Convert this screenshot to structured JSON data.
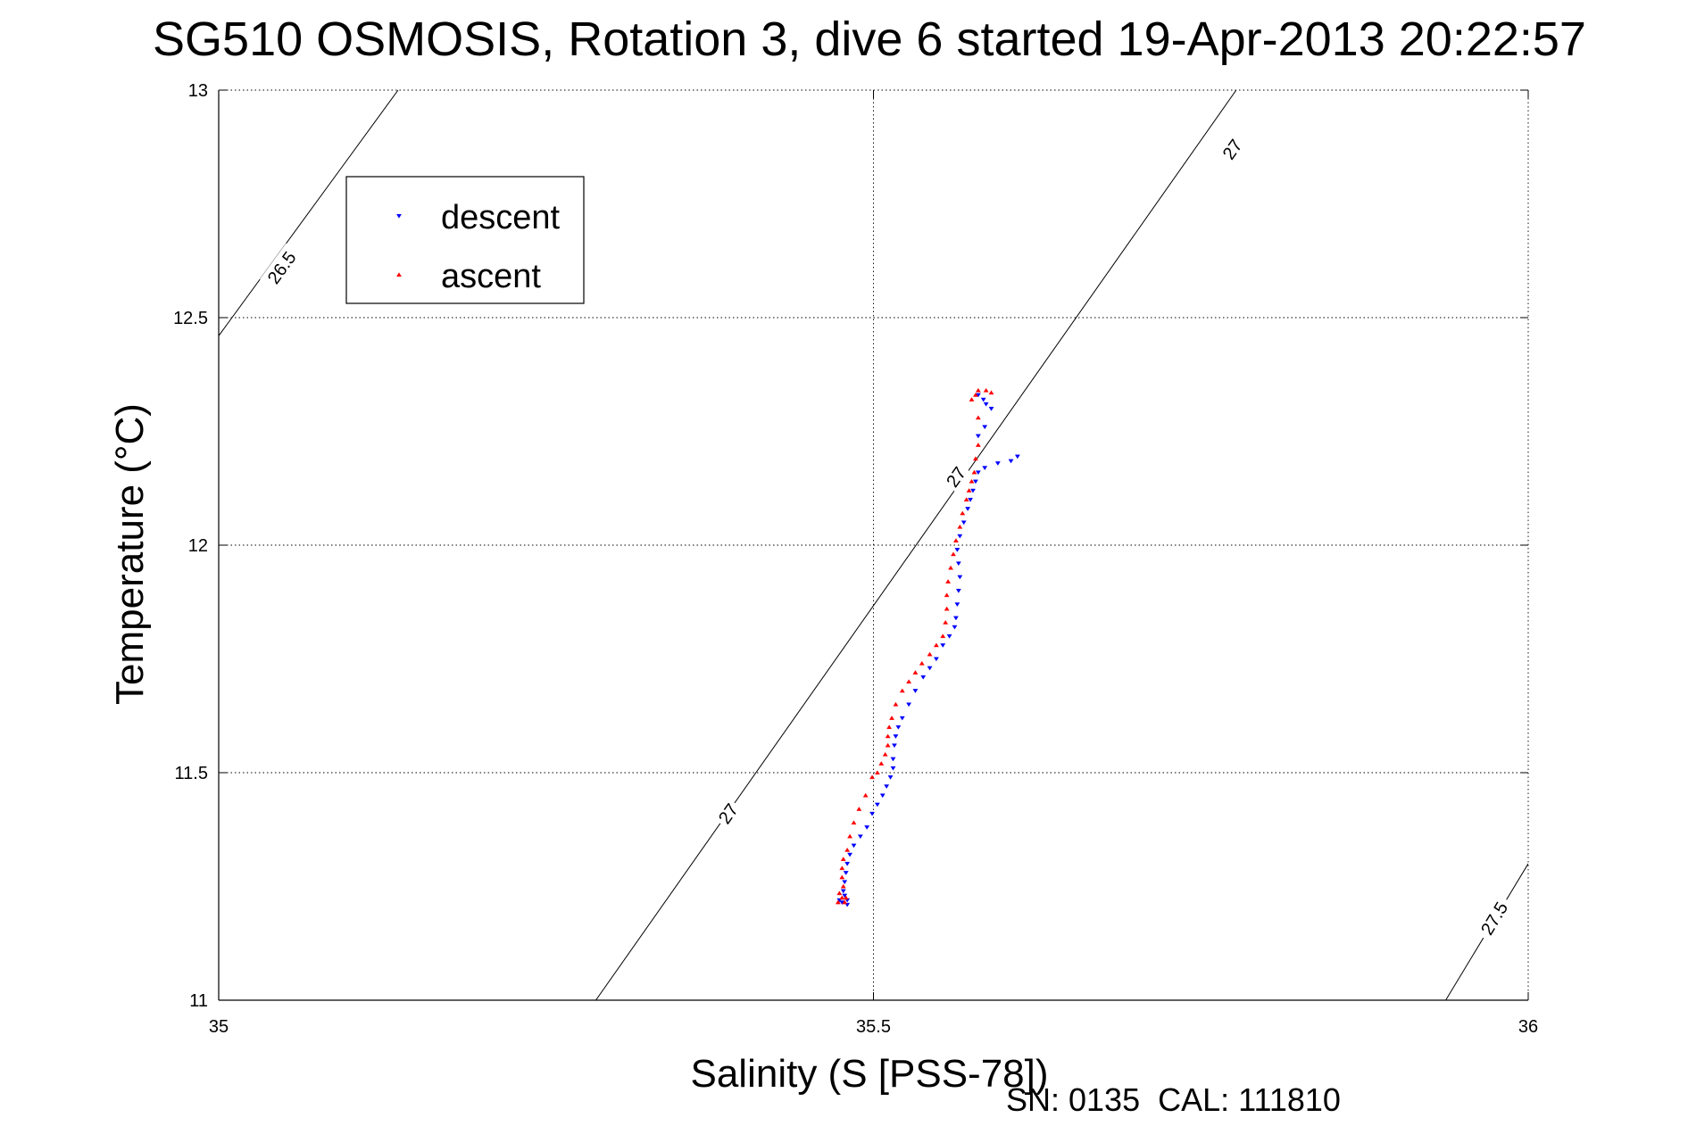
{
  "chart_data": {
    "type": "scatter",
    "title": "SG510 OSMOSIS, Rotation 3, dive 6 started 19-Apr-2013 20:22:57",
    "xlabel": "Salinity (S [PSS-78])",
    "ylabel": "Temperature (°C)",
    "xlim": [
      35,
      36
    ],
    "ylim": [
      11,
      13
    ],
    "xticks": [
      35,
      35.5,
      36
    ],
    "xtick_labels": [
      "35",
      "35.5",
      "36"
    ],
    "yticks": [
      11,
      11.5,
      12,
      12.5,
      13
    ],
    "ytick_labels": [
      "11",
      "11.5",
      "12",
      "12.5",
      "13"
    ],
    "grid": true,
    "legend_position": "top-left",
    "footer": "SN: 0135  CAL: 111810",
    "series": [
      {
        "name": "descent",
        "color": "#0000ff",
        "marker": "triangle-down",
        "points": [
          [
            35.584,
            12.32
          ],
          [
            35.586,
            12.31
          ],
          [
            35.58,
            12.33
          ],
          [
            35.59,
            12.3
          ],
          [
            35.585,
            12.26
          ],
          [
            35.58,
            12.24
          ],
          [
            35.61,
            12.195
          ],
          [
            35.605,
            12.185
          ],
          [
            35.595,
            12.18
          ],
          [
            35.585,
            12.17
          ],
          [
            35.58,
            12.16
          ],
          [
            35.578,
            12.14
          ],
          [
            35.576,
            12.12
          ],
          [
            35.574,
            12.1
          ],
          [
            35.572,
            12.08
          ],
          [
            35.569,
            12.05
          ],
          [
            35.566,
            12.02
          ],
          [
            35.564,
            11.99
          ],
          [
            35.565,
            11.96
          ],
          [
            35.566,
            11.93
          ],
          [
            35.565,
            11.9
          ],
          [
            35.564,
            11.87
          ],
          [
            35.563,
            11.84
          ],
          [
            35.562,
            11.82
          ],
          [
            35.558,
            11.8
          ],
          [
            35.553,
            11.78
          ],
          [
            35.548,
            11.75
          ],
          [
            35.543,
            11.73
          ],
          [
            35.538,
            11.71
          ],
          [
            35.532,
            11.68
          ],
          [
            35.527,
            11.65
          ],
          [
            35.522,
            11.62
          ],
          [
            35.519,
            11.6
          ],
          [
            35.517,
            11.58
          ],
          [
            35.516,
            11.56
          ],
          [
            35.515,
            11.53
          ],
          [
            35.515,
            11.51
          ],
          [
            35.513,
            11.49
          ],
          [
            35.51,
            11.47
          ],
          [
            35.507,
            11.45
          ],
          [
            35.503,
            11.43
          ],
          [
            35.499,
            11.41
          ],
          [
            35.495,
            11.38
          ],
          [
            35.49,
            11.36
          ],
          [
            35.485,
            11.34
          ],
          [
            35.482,
            11.32
          ],
          [
            35.48,
            11.3
          ],
          [
            35.479,
            11.28
          ],
          [
            35.478,
            11.26
          ],
          [
            35.477,
            11.24
          ],
          [
            35.478,
            11.23
          ],
          [
            35.48,
            11.22
          ],
          [
            35.476,
            11.215
          ],
          [
            35.474,
            11.22
          ],
          [
            35.48,
            11.21
          ]
        ]
      },
      {
        "name": "ascent",
        "color": "#ff0000",
        "marker": "triangle-up",
        "points": [
          [
            35.58,
            12.34
          ],
          [
            35.578,
            12.33
          ],
          [
            35.586,
            12.34
          ],
          [
            35.59,
            12.335
          ],
          [
            35.575,
            12.32
          ],
          [
            35.58,
            12.28
          ],
          [
            35.58,
            12.22
          ],
          [
            35.578,
            12.19
          ],
          [
            35.577,
            12.16
          ],
          [
            35.575,
            12.14
          ],
          [
            35.573,
            12.12
          ],
          [
            35.571,
            12.1
          ],
          [
            35.568,
            12.07
          ],
          [
            35.566,
            12.04
          ],
          [
            35.563,
            12.01
          ],
          [
            35.561,
            11.98
          ],
          [
            35.559,
            11.95
          ],
          [
            35.557,
            11.92
          ],
          [
            35.556,
            11.89
          ],
          [
            35.556,
            11.86
          ],
          [
            35.555,
            11.83
          ],
          [
            35.553,
            11.8
          ],
          [
            35.548,
            11.78
          ],
          [
            35.543,
            11.76
          ],
          [
            35.537,
            11.74
          ],
          [
            35.532,
            11.72
          ],
          [
            35.527,
            11.7
          ],
          [
            35.522,
            11.68
          ],
          [
            35.517,
            11.65
          ],
          [
            35.514,
            11.62
          ],
          [
            35.512,
            11.6
          ],
          [
            35.511,
            11.58
          ],
          [
            35.511,
            11.56
          ],
          [
            35.509,
            11.54
          ],
          [
            35.506,
            11.52
          ],
          [
            35.503,
            11.5
          ],
          [
            35.499,
            11.49
          ],
          [
            35.494,
            11.45
          ],
          [
            35.489,
            11.42
          ],
          [
            35.485,
            11.39
          ],
          [
            35.482,
            11.36
          ],
          [
            35.48,
            11.33
          ],
          [
            35.477,
            11.31
          ],
          [
            35.476,
            11.29
          ],
          [
            35.476,
            11.27
          ],
          [
            35.477,
            11.25
          ],
          [
            35.474,
            11.235
          ],
          [
            35.476,
            11.225
          ],
          [
            35.473,
            11.215
          ],
          [
            35.479,
            11.225
          ],
          [
            35.478,
            11.215
          ]
        ]
      }
    ],
    "density_contours": [
      {
        "label": "26.5",
        "from": [
          35.0,
          12.46
        ],
        "to": [
          35.137,
          13.0
        ]
      },
      {
        "label": "27",
        "from": [
          35.288,
          11.0
        ],
        "to": [
          35.777,
          13.0
        ]
      },
      {
        "label": "27.5",
        "from": [
          35.937,
          11.0
        ],
        "to": [
          36.0,
          11.3
        ]
      }
    ],
    "contour_labels": [
      {
        "text": "26.5",
        "x": 35.048,
        "y": 12.61
      },
      {
        "text": "27",
        "x": 35.774,
        "y": 12.87
      },
      {
        "text": "27",
        "x": 35.563,
        "y": 12.15
      },
      {
        "text": "27",
        "x": 35.389,
        "y": 11.41
      },
      {
        "text": "27.5",
        "x": 35.974,
        "y": 11.18
      }
    ]
  }
}
